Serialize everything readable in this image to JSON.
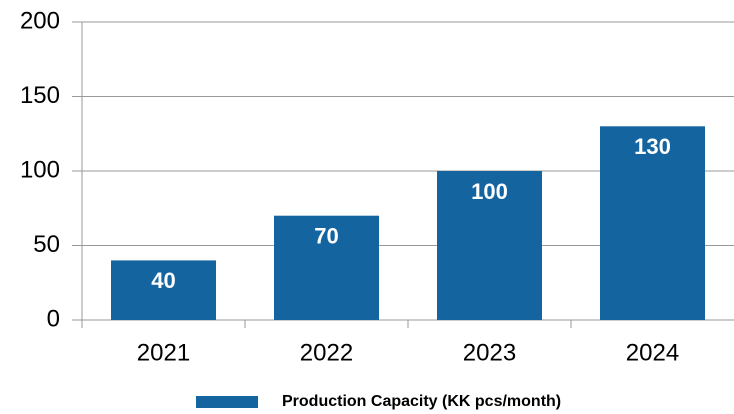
{
  "chart_data": {
    "type": "bar",
    "categories": [
      "2021",
      "2022",
      "2023",
      "2024"
    ],
    "series": [
      {
        "name": "Production Capacity (KK pcs/month)",
        "color": "#1464a0",
        "values": [
          40,
          70,
          100,
          130
        ]
      }
    ],
    "ylim": [
      0,
      200
    ],
    "yticks": [
      0,
      50,
      100,
      150,
      200
    ],
    "grid": true,
    "legend": "bottom"
  }
}
